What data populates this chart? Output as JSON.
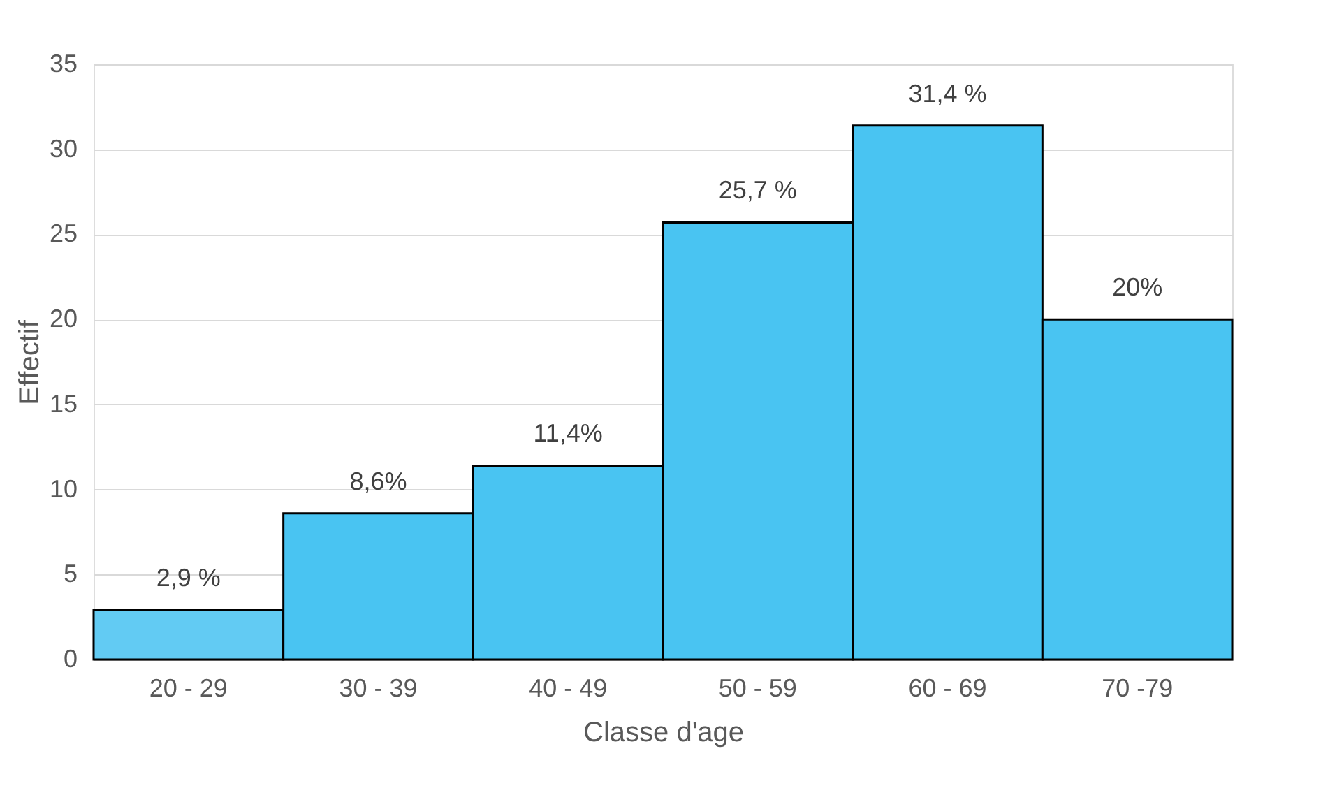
{
  "chart_data": {
    "type": "bar",
    "xlabel": "Classe d'age",
    "ylabel": "Effectif",
    "categories": [
      "20 - 29",
      "30 - 39",
      "40 - 49",
      "50 - 59",
      "60 - 69",
      "70 -79"
    ],
    "values": [
      2.9,
      8.6,
      11.4,
      25.7,
      31.4,
      20
    ],
    "value_labels": [
      "2,9 %",
      "8,6%",
      "11,4%",
      "25,7 %",
      "31,4 %",
      "20%"
    ],
    "colors": [
      "#62cbf3",
      "#49c4f2",
      "#49c4f2",
      "#49c4f2",
      "#49c4f2",
      "#49c4f2"
    ],
    "ylim": [
      0,
      35
    ],
    "yticks": [
      0,
      5,
      10,
      15,
      20,
      25,
      30,
      35
    ],
    "grid": "y"
  }
}
